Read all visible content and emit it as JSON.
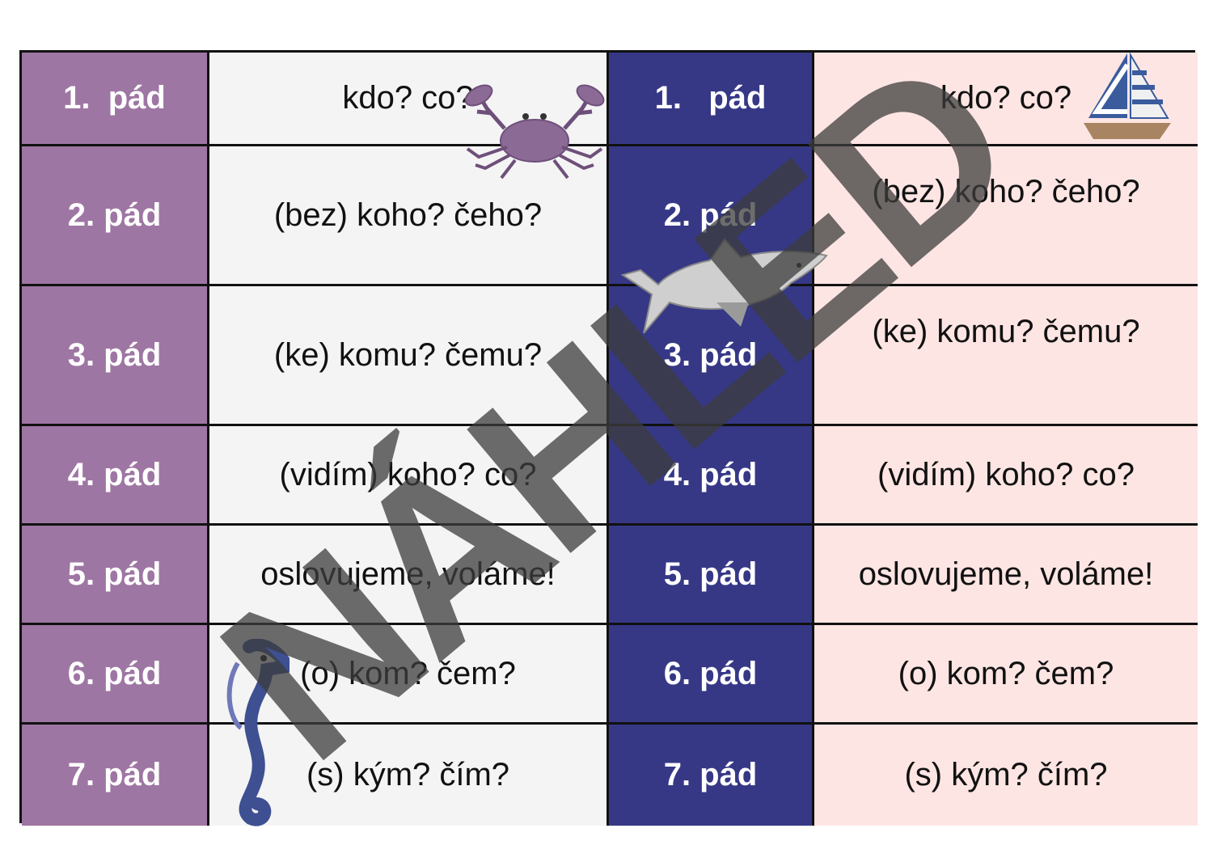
{
  "left_table": {
    "rows": [
      {
        "label": "1.  pád",
        "question": "kdo? co?"
      },
      {
        "label": "2. pád",
        "question": "(bez) koho? čeho?"
      },
      {
        "label": "3. pád",
        "question": "(ke) komu? čemu?"
      },
      {
        "label": "4. pád",
        "question": "(vidím) koho? co?"
      },
      {
        "label": "5. pád",
        "question": "oslovujeme, voláme!"
      },
      {
        "label": "6. pád",
        "question": "(o) kom? čem?"
      },
      {
        "label": "7. pád",
        "question": "(s) kým? čím?"
      }
    ]
  },
  "right_table": {
    "rows": [
      {
        "label": "1.   pád",
        "question": "kdo? co?"
      },
      {
        "label": "2. pád",
        "question": "(bez) koho? čeho?"
      },
      {
        "label": "3. pád",
        "question": "(ke) komu? čemu?"
      },
      {
        "label": "4. pád",
        "question": "(vidím) koho? co?"
      },
      {
        "label": "5. pád",
        "question": "oslovujeme, voláme!"
      },
      {
        "label": "6. pád",
        "question": "(o) kom? čem?"
      },
      {
        "label": "7. pád",
        "question": "(s) kým? čím?"
      }
    ]
  },
  "watermark": {
    "text": "NÁHLED"
  },
  "illustrations": [
    "crab-illustration",
    "sailboat-illustration",
    "shark-illustration",
    "seahorse-illustration"
  ],
  "colors": {
    "purple": "#9e76a3",
    "navy": "#363886",
    "grey": "#f4f4f4",
    "pink": "#fde5e3"
  }
}
